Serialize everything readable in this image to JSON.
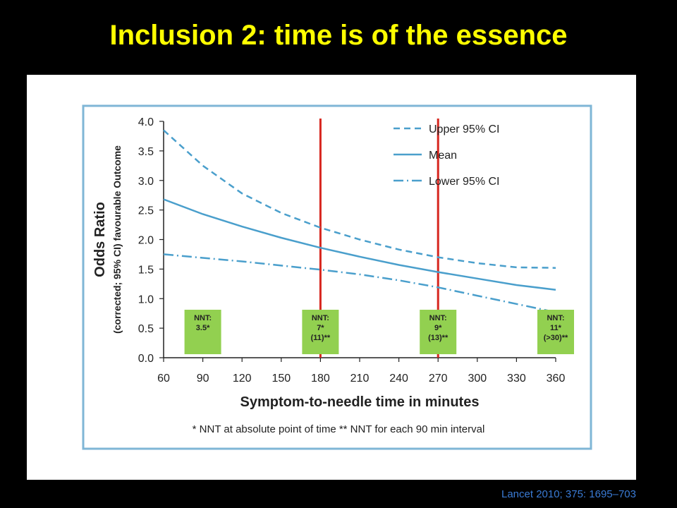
{
  "slide": {
    "title": "Inclusion 2: time is of the essence",
    "citation": "Lancet 2010; 375: 1695–703"
  },
  "colors": {
    "background": "#000000",
    "title": "#ffff00",
    "series": "#4a9fcc",
    "frame": "#7fb6d6",
    "marker": "#d7261e",
    "nnt_box": "#92d050",
    "citation": "#3a7bd5"
  },
  "chart_data": {
    "type": "line",
    "xlabel": "Symptom-to-needle time in minutes",
    "ylabel_main": "Odds Ratio",
    "ylabel_sub": "(corrected; 95% CI) favourable Outcome",
    "xlim": [
      60,
      360
    ],
    "ylim": [
      0,
      4
    ],
    "xticks": [
      "60",
      "90",
      "120",
      "150",
      "180",
      "210",
      "240",
      "270",
      "300",
      "330",
      "360"
    ],
    "yticks": [
      "0.0",
      "0.5",
      "1.0",
      "1.5",
      "2.0",
      "2.5",
      "3.0",
      "3.5",
      "4.0"
    ],
    "legend_position": "top-right",
    "x": [
      60,
      90,
      120,
      150,
      180,
      210,
      240,
      270,
      300,
      330,
      360
    ],
    "series": [
      {
        "name": "Upper 95% CI",
        "style": "dashed",
        "values": [
          3.85,
          3.25,
          2.78,
          2.45,
          2.2,
          2.0,
          1.83,
          1.7,
          1.6,
          1.53,
          1.52
        ]
      },
      {
        "name": "Mean",
        "style": "solid",
        "values": [
          2.68,
          2.43,
          2.22,
          2.03,
          1.86,
          1.71,
          1.57,
          1.45,
          1.34,
          1.23,
          1.15
        ]
      },
      {
        "name": "Lower 95% CI",
        "style": "dashdot",
        "values": [
          1.75,
          1.69,
          1.63,
          1.56,
          1.49,
          1.41,
          1.31,
          1.19,
          1.05,
          0.91,
          0.77
        ]
      }
    ],
    "vertical_markers": [
      180,
      270
    ],
    "nnt_boxes": [
      {
        "center_x": 90,
        "lines": [
          "NNT:",
          "3.5*"
        ]
      },
      {
        "center_x": 180,
        "lines": [
          "NNT:",
          "7*",
          "(11)**"
        ]
      },
      {
        "center_x": 270,
        "lines": [
          "NNT:",
          "9*",
          "(13)**"
        ]
      },
      {
        "center_x": 360,
        "lines": [
          "NNT:",
          "11*",
          "(>30)**"
        ]
      }
    ],
    "footnote": "* NNT at absolute point of time  ** NNT for each 90 min interval"
  }
}
